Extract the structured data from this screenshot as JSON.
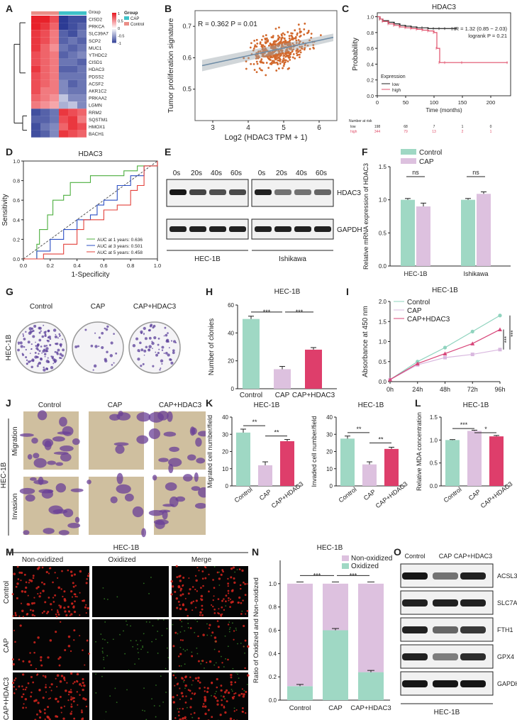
{
  "panel_letters": [
    "A",
    "B",
    "C",
    "D",
    "E",
    "F",
    "G",
    "H",
    "I",
    "J",
    "K",
    "L",
    "M",
    "N",
    "O"
  ],
  "colors": {
    "control": "#9fd8c4",
    "cap": "#ddc1df",
    "caphdac3": "#de3e6b",
    "line_control": "#8fd3be",
    "line_cap": "#d9b8df",
    "line_caphdac3": "#d8467a",
    "scatter": "#d2692d",
    "heat_hi": "#e8212a",
    "heat_lo": "#2c3b94"
  },
  "chart_data": [
    {
      "id": "A",
      "type": "heatmap",
      "genes": [
        "CISD2",
        "PRKCA",
        "SLC39A7",
        "SCP2",
        "MUC1",
        "YTHDC2",
        "CISD1",
        "HDAC3",
        "PDSS2",
        "ACSF2",
        "AKR1C2",
        "PRKAA2",
        "LGMN",
        "RRM2",
        "SQSTM1",
        "HMOX1",
        "BACH1"
      ],
      "legend_title": "Group",
      "legend_items": [
        "CAP",
        "Control"
      ],
      "scale_ticks": [
        "1",
        "0.5",
        "0",
        "-0.5",
        "-1"
      ],
      "group_row": [
        "Control",
        "Control",
        "Control",
        "CAP",
        "CAP",
        "CAP"
      ],
      "values": [
        [
          1,
          1,
          0.8,
          -1,
          -0.9,
          -0.9
        ],
        [
          1,
          0.9,
          0.7,
          -1,
          -0.9,
          -0.8
        ],
        [
          0.9,
          0.8,
          0.6,
          -0.8,
          -0.9,
          -0.7
        ],
        [
          0.9,
          0.8,
          0.6,
          -0.8,
          -0.7,
          -0.8
        ],
        [
          0.9,
          0.7,
          0.5,
          -0.7,
          -0.8,
          -0.7
        ],
        [
          0.8,
          0.7,
          0.6,
          -0.8,
          -0.7,
          -0.6
        ],
        [
          0.8,
          0.7,
          0.6,
          -0.7,
          -0.7,
          -0.8
        ],
        [
          0.9,
          0.7,
          0.6,
          -0.8,
          -0.8,
          -0.7
        ],
        [
          0.8,
          0.7,
          0.6,
          -0.7,
          -0.7,
          -0.7
        ],
        [
          0.8,
          0.7,
          0.6,
          -0.6,
          -0.8,
          -0.7
        ],
        [
          0.8,
          0.6,
          0.6,
          -0.6,
          -0.7,
          -0.7
        ],
        [
          0.7,
          0.6,
          0.5,
          -0.3,
          -0.6,
          -0.6
        ],
        [
          0.6,
          0.5,
          0.4,
          -0.4,
          -0.3,
          -0.6
        ],
        [
          -0.9,
          -0.8,
          -0.7,
          0.9,
          0.8,
          0.7
        ],
        [
          -0.8,
          -0.8,
          -0.7,
          0.8,
          0.9,
          0.6
        ],
        [
          -0.9,
          -0.7,
          -0.6,
          0.7,
          0.9,
          0.8
        ],
        [
          -0.9,
          -0.8,
          -0.6,
          0.9,
          0.8,
          0.7
        ]
      ]
    },
    {
      "id": "B",
      "type": "scatter",
      "annotation": "R = 0.362  P = 0.01",
      "xlabel": "Log2 (HDAC3 TPM + 1)",
      "ylabel": "Tumor proliferation signature",
      "xlim": [
        2.5,
        6.5
      ],
      "ylim": [
        0.4,
        0.75
      ],
      "xticks": [
        3,
        4,
        5,
        6
      ],
      "yticks": [
        0.5,
        0.6,
        0.7
      ],
      "fit": {
        "x": [
          2.7,
          6.4
        ],
        "y": [
          0.575,
          0.665
        ]
      },
      "n_points": 420,
      "x_center": 4.9,
      "y_center": 0.63
    },
    {
      "id": "C",
      "type": "line",
      "title": "HDAC3",
      "annotation": [
        "HR = 1.32 (0.85 − 2.03)",
        "logrank P = 0.21"
      ],
      "xlabel": "Time (months)",
      "ylabel": "Probability",
      "xticks": [
        0,
        50,
        100,
        150,
        200
      ],
      "yticks": [
        "0.0",
        "0.2",
        "0.4",
        "0.6",
        "0.8",
        "1.0"
      ],
      "xlim": [
        0,
        235
      ],
      "ylim": [
        0,
        1.05
      ],
      "legend_title": "Expression",
      "series": [
        {
          "name": "low",
          "x": [
            0,
            5,
            10,
            20,
            30,
            40,
            50,
            60,
            70,
            80,
            90,
            100,
            110,
            120,
            140
          ],
          "y": [
            1,
            0.97,
            0.95,
            0.93,
            0.91,
            0.89,
            0.88,
            0.87,
            0.86,
            0.86,
            0.85,
            0.85,
            0.85,
            0.85,
            0.85
          ]
        },
        {
          "name": "high",
          "x": [
            0,
            5,
            10,
            20,
            30,
            40,
            50,
            60,
            70,
            80,
            90,
            100,
            105,
            110,
            120,
            150,
            230
          ],
          "y": [
            1,
            0.97,
            0.94,
            0.91,
            0.89,
            0.87,
            0.86,
            0.85,
            0.84,
            0.83,
            0.82,
            0.8,
            0.6,
            0.42,
            0.42,
            0.42,
            0.42
          ]
        }
      ],
      "risk_title": "Number at risk",
      "risk_rows": [
        {
          "name": "low",
          "values": [
            "198",
            "68",
            "7",
            "1",
            "0"
          ]
        },
        {
          "name": "high",
          "values": [
            "344",
            "79",
            "13",
            "2",
            "1"
          ]
        }
      ]
    },
    {
      "id": "D",
      "type": "line",
      "title": "HDAC3",
      "xlabel": "1-Specificity",
      "ylabel": "Sensitivity",
      "xticks": [
        "0.0",
        "0.2",
        "0.4",
        "0.6",
        "0.8",
        "1.0"
      ],
      "yticks": [
        "0.0",
        "0.2",
        "0.4",
        "0.6",
        "0.8",
        "1.0"
      ],
      "series": [
        {
          "name": "AUC at 1 years: 0.636",
          "x": [
            0,
            0.1,
            0.12,
            0.18,
            0.22,
            0.3,
            0.35,
            0.45,
            0.5,
            0.6,
            0.75,
            0.85,
            0.95,
            1
          ],
          "y": [
            0,
            0.15,
            0.3,
            0.45,
            0.6,
            0.65,
            0.78,
            0.78,
            0.85,
            0.85,
            0.9,
            0.95,
            0.95,
            1
          ]
        },
        {
          "name": "AUC at 3 years: 0.501",
          "x": [
            0,
            0.1,
            0.2,
            0.3,
            0.4,
            0.5,
            0.55,
            0.6,
            0.7,
            0.8,
            0.9,
            1
          ],
          "y": [
            0,
            0.08,
            0.2,
            0.3,
            0.4,
            0.45,
            0.55,
            0.6,
            0.75,
            0.85,
            0.95,
            1
          ]
        },
        {
          "name": "AUC at 5 years: 0.458",
          "x": [
            0,
            0.15,
            0.3,
            0.4,
            0.45,
            0.55,
            0.6,
            0.7,
            0.8,
            0.85,
            0.9,
            1
          ],
          "y": [
            0,
            0.05,
            0.15,
            0.3,
            0.4,
            0.4,
            0.5,
            0.55,
            0.7,
            0.75,
            0.95,
            1
          ]
        }
      ]
    },
    {
      "id": "F",
      "type": "bar",
      "ylabel": "Relative mRNA expression of HDAC3",
      "categories": [
        "HEC-1B",
        "Ishikawa"
      ],
      "ylim": [
        0,
        1.5
      ],
      "yticks": [
        "0.0",
        "0.5",
        "1.0",
        "1.5"
      ],
      "series": [
        {
          "name": "Control",
          "values": [
            1.0,
            1.0
          ],
          "err": [
            0.02,
            0.02
          ]
        },
        {
          "name": "CAP",
          "values": [
            0.9,
            1.09
          ],
          "err": [
            0.05,
            0.03
          ]
        }
      ],
      "significance": [
        "ns",
        "ns"
      ]
    },
    {
      "id": "H",
      "type": "bar",
      "title": "HEC-1B",
      "ylabel": "Number of clonies",
      "categories": [
        "Control",
        "CAP",
        "CAP+HDAC3"
      ],
      "values": [
        50,
        14,
        28
      ],
      "err": [
        2,
        2,
        1.5
      ],
      "ylim": [
        0,
        60
      ],
      "yticks": [
        "0",
        "20",
        "40",
        "60"
      ],
      "significance": [
        "***",
        "***"
      ]
    },
    {
      "id": "I",
      "type": "line",
      "title": "HEC-1B",
      "ylabel": "Absorbance at 450 nm",
      "x": [
        "0h",
        "24h",
        "48h",
        "72h",
        "96h"
      ],
      "ylim": [
        0,
        2.0
      ],
      "yticks": [
        "0.0",
        "0.5",
        "1.0",
        "1.5",
        "2.0"
      ],
      "series": [
        {
          "name": "Control",
          "values": [
            0.05,
            0.5,
            0.85,
            1.25,
            1.65
          ]
        },
        {
          "name": "CAP",
          "values": [
            0.05,
            0.42,
            0.6,
            0.68,
            0.8
          ]
        },
        {
          "name": "CAP+HDAC3",
          "values": [
            0.05,
            0.45,
            0.7,
            0.95,
            1.3
          ]
        }
      ],
      "significance": [
        "***",
        "***"
      ]
    },
    {
      "id": "K1",
      "type": "bar",
      "title": "HEC-1B",
      "ylabel": "Migrated cell number/field",
      "categories": [
        "Control",
        "CAP",
        "CAP+HDAC3"
      ],
      "values": [
        31,
        12,
        26
      ],
      "err": [
        2,
        2,
        1
      ],
      "ylim": [
        0,
        40
      ],
      "yticks": [
        "0",
        "10",
        "20",
        "30",
        "40"
      ],
      "significance": [
        "**",
        "**"
      ]
    },
    {
      "id": "K2",
      "type": "bar",
      "title": "HEC-1B",
      "ylabel": "Invaded cell number/field",
      "categories": [
        "Control",
        "CAP",
        "CAP+HDAC3"
      ],
      "values": [
        27.5,
        12.5,
        21.5
      ],
      "err": [
        1.5,
        1.5,
        1
      ],
      "ylim": [
        0,
        40
      ],
      "yticks": [
        "0",
        "10",
        "20",
        "30",
        "40"
      ],
      "significance": [
        "**",
        "**"
      ]
    },
    {
      "id": "L",
      "type": "bar",
      "title": "HEC-1B",
      "ylabel": "Relative MDA concentration",
      "categories": [
        "Control",
        "CAP",
        "CAP+HDAC3"
      ],
      "values": [
        1.0,
        1.2,
        1.08
      ],
      "err": [
        0.01,
        0.015,
        0.02
      ],
      "ylim": [
        0,
        1.5
      ],
      "yticks": [
        "0.0",
        "0.5",
        "1.0",
        "1.5"
      ],
      "significance": [
        "***",
        "*"
      ]
    },
    {
      "id": "N",
      "type": "bar",
      "title": "HEC-1B",
      "ylabel": "Ratio of Oxidized and Non-oxidized",
      "categories": [
        "Control",
        "CAP",
        "CAP+HDAC3"
      ],
      "series": [
        {
          "name": "Oxidized",
          "values": [
            0.12,
            0.6,
            0.24
          ]
        },
        {
          "name": "Non-oxidized",
          "values": [
            0.88,
            0.4,
            0.76
          ]
        }
      ],
      "ylim": [
        0,
        1.2
      ],
      "yticks": [
        "0.0",
        "0.2",
        "0.4",
        "0.6",
        "0.8",
        "1.0"
      ],
      "significance": [
        "***",
        "***"
      ]
    }
  ],
  "panel_E": {
    "time_points": [
      "0s",
      "20s",
      "40s",
      "60s",
      "0s",
      "20s",
      "40s",
      "60s"
    ],
    "bands": [
      "HDAC3",
      "GAPDH"
    ],
    "cell_lines": [
      "HEC-1B",
      "Ishikawa"
    ],
    "hdac3_intensity": [
      0.95,
      0.75,
      0.7,
      0.72,
      0.9,
      0.55,
      0.55,
      0.6
    ]
  },
  "panel_G": {
    "cell_line": "HEC-1B",
    "conditions": [
      "Control",
      "CAP",
      "CAP+HDAC3"
    ],
    "colony_density": [
      0.8,
      0.15,
      0.4
    ]
  },
  "panel_J": {
    "cell_line": "HEC-1B",
    "conditions": [
      "Control",
      "CAP",
      "CAP+HDAC3"
    ],
    "rows": [
      "Migration",
      "Invasion"
    ],
    "density": [
      0.8,
      0.3,
      0.7
    ]
  },
  "panel_M": {
    "title": "HEC-1B",
    "columns": [
      "Non-oxidized",
      "Oxidized",
      "Merge"
    ],
    "rows": [
      "Control",
      "CAP",
      "CAP+HDAC3"
    ]
  },
  "panel_O": {
    "conditions": [
      "Control",
      "CAP",
      "CAP+HDAC3"
    ],
    "bands": [
      "ACSL3",
      "SLC7A11",
      "FTH1",
      "GPX4",
      "GAPDH"
    ],
    "cell_line": "HEC-1B",
    "intensity": [
      [
        0.95,
        0.55,
        0.9
      ],
      [
        0.9,
        0.9,
        0.9
      ],
      [
        0.9,
        0.6,
        0.8
      ],
      [
        0.9,
        0.5,
        0.85
      ],
      [
        0.95,
        0.95,
        0.95
      ]
    ]
  }
}
